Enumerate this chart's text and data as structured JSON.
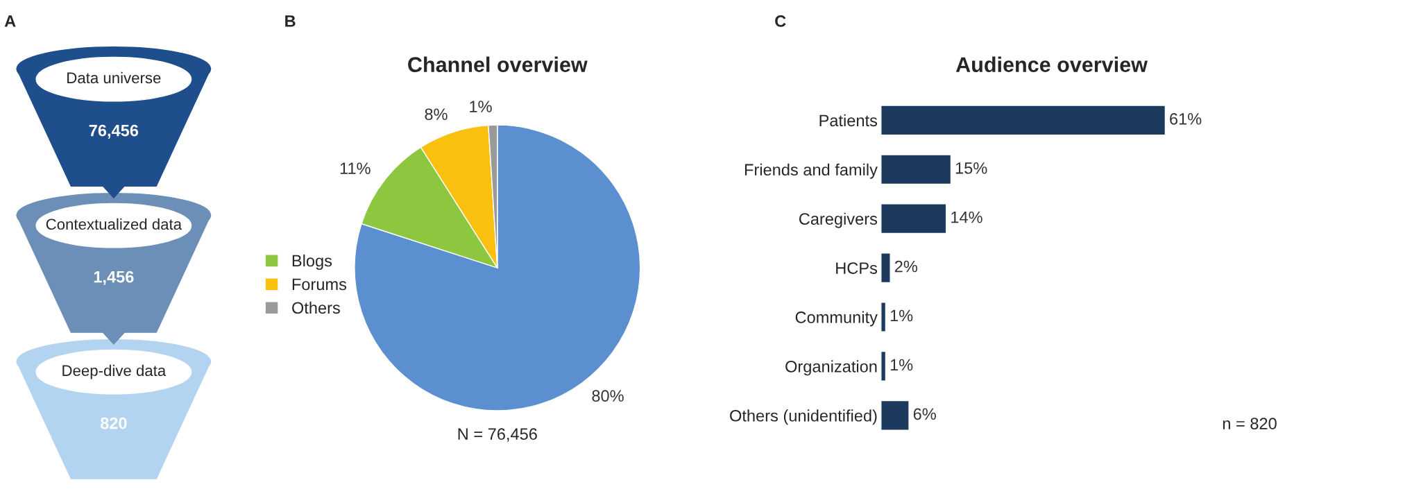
{
  "chart_data": [
    {
      "type": "other",
      "categories": [
        "Data universe",
        "Contextualized data",
        "Deep-dive data"
      ],
      "value_labels": [
        "76,456",
        "1,456",
        "820"
      ],
      "colors": [
        "#1f4e8c",
        "#6b8fb6",
        "#b3d4f0"
      ],
      "annotations": [
        "A"
      ]
    },
    {
      "type": "pie",
      "title": "Channel overview",
      "categories": [
        null,
        "Blogs",
        "Forums",
        "Others"
      ],
      "values": [
        80,
        11,
        8,
        1
      ],
      "value_labels": [
        "80%",
        "11%",
        "8%",
        "1%"
      ],
      "colors": [
        "#5b8fd0",
        "#8dc63f",
        "#f9c010",
        "#9a9a9a"
      ],
      "legend": "left",
      "annotations": [
        "B",
        "N = 76,456"
      ]
    },
    {
      "type": "bar",
      "orientation": "horizontal",
      "title": "Audience overview",
      "categories": [
        "Patients",
        "Friends and family",
        "Caregivers",
        "HCPs",
        "Community",
        "Organization",
        "Others (unidentified)"
      ],
      "values": [
        61,
        15,
        14,
        2,
        1,
        1,
        6
      ],
      "value_labels": [
        "61%",
        "15%",
        "14%",
        "2%",
        "1%",
        "1%",
        "6%"
      ],
      "color": "#1b3a5e",
      "annotations": [
        "C",
        "n = 820"
      ]
    }
  ]
}
